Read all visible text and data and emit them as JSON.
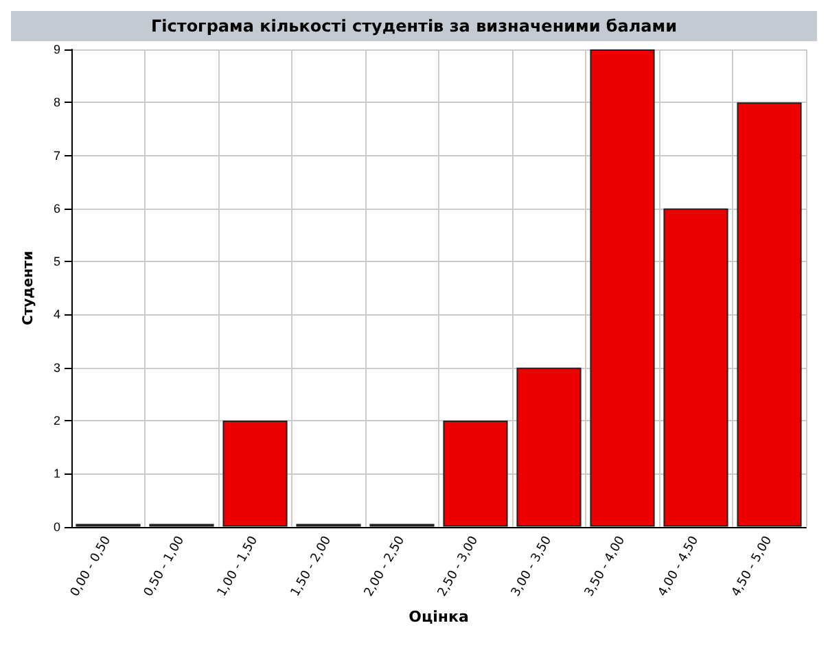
{
  "chart_data": {
    "type": "bar",
    "title": "Гістограма кількості студентів за визначеними балами",
    "xlabel": "Оцінка",
    "ylabel": "Студенти",
    "categories": [
      "0,00 - 0,50",
      "0,50 - 1,00",
      "1,00 - 1,50",
      "1,50 - 2,00",
      "2,00 - 2,50",
      "2,50 - 3,00",
      "3,00 - 3,50",
      "3,50 - 4,00",
      "4,00 - 4,50",
      "4,50 - 5,00"
    ],
    "values": [
      0,
      0,
      2,
      0,
      0,
      2,
      3,
      9,
      6,
      8
    ],
    "color": "#ee0000",
    "ylim": [
      0,
      9
    ],
    "yticks": [
      0,
      1,
      2,
      3,
      4,
      5,
      6,
      7,
      8,
      9
    ],
    "grid": true
  }
}
